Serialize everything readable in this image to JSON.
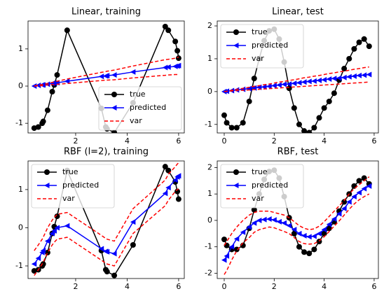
{
  "chart_data": [
    {
      "type": "line",
      "title": "Linear, training",
      "legend": "lower right",
      "x": [
        0.39,
        0.55,
        0.7,
        0.74,
        0.91,
        1.09,
        1.17,
        1.28,
        1.67,
        3.0,
        3.17,
        3.22,
        3.5,
        4.23,
        5.48,
        5.6,
        5.87,
        5.95,
        6.0
      ],
      "xlim": [
        0.15,
        6.22
      ],
      "xticks": [
        2,
        4,
        6
      ],
      "ylim": [
        -1.26,
        1.75
      ],
      "yticks": [
        -1,
        0,
        1
      ],
      "series": [
        {
          "name": "true",
          "color": "#000000",
          "values": [
            -1.13,
            -1.1,
            -1.0,
            -0.95,
            -0.65,
            -0.15,
            0.03,
            0.3,
            1.5,
            -0.6,
            -1.1,
            -1.15,
            -1.25,
            -0.45,
            1.6,
            1.5,
            1.2,
            0.95,
            0.75
          ]
        },
        {
          "name": "predicted",
          "color": "#0000ff",
          "values": [
            0,
            0.02,
            0.03,
            0.03,
            0.05,
            0.07,
            0.08,
            0.09,
            0.13,
            0.26,
            0.27,
            0.28,
            0.3,
            0.38,
            0.5,
            0.51,
            0.53,
            0.54,
            0.55
          ]
        },
        {
          "name": "var",
          "color": "#ff0000",
          "values": [
            0,
            0.03,
            0.04,
            0.05,
            0.07,
            0.1,
            0.11,
            0.13,
            0.19,
            0.37,
            0.39,
            0.4,
            0.43,
            0.54,
            0.71,
            0.72,
            0.75,
            0.77,
            0.78
          ],
          "values_lower": [
            0,
            0.01,
            0.01,
            0.02,
            0.03,
            0.04,
            0.04,
            0.05,
            0.07,
            0.15,
            0.16,
            0.16,
            0.17,
            0.22,
            0.29,
            0.3,
            0.31,
            0.31,
            0.32
          ]
        }
      ]
    },
    {
      "type": "line",
      "title": "Linear, test",
      "legend": "upper left",
      "x": [
        0,
        0.1,
        0.3,
        0.5,
        0.75,
        1.0,
        1.2,
        1.4,
        1.6,
        1.8,
        2.0,
        2.2,
        2.4,
        2.6,
        2.8,
        3.0,
        3.2,
        3.4,
        3.6,
        3.8,
        4.0,
        4.2,
        4.4,
        4.6,
        4.8,
        5.0,
        5.2,
        5.4,
        5.6,
        5.8
      ],
      "xlim": [
        -0.28,
        6.17
      ],
      "xticks": [
        0,
        2,
        4,
        6
      ],
      "ylim": [
        -1.26,
        2.15
      ],
      "yticks": [
        -1,
        0,
        1,
        2
      ],
      "series": [
        {
          "name": "true",
          "color": "#000000",
          "values": [
            -0.72,
            -0.95,
            -1.1,
            -1.1,
            -0.95,
            -0.3,
            0.4,
            1.0,
            1.55,
            1.85,
            1.9,
            1.6,
            0.9,
            0.1,
            -0.5,
            -1.0,
            -1.2,
            -1.25,
            -1.1,
            -0.8,
            -0.5,
            -0.3,
            -0.05,
            0.35,
            0.7,
            1.0,
            1.3,
            1.5,
            1.6,
            1.38
          ]
        },
        {
          "name": "predicted",
          "color": "#0000ff",
          "values": [
            0,
            0.01,
            0.03,
            0.05,
            0.07,
            0.09,
            0.11,
            0.13,
            0.14,
            0.16,
            0.18,
            0.2,
            0.22,
            0.23,
            0.25,
            0.27,
            0.29,
            0.31,
            0.32,
            0.34,
            0.36,
            0.38,
            0.4,
            0.41,
            0.43,
            0.45,
            0.47,
            0.49,
            0.5,
            0.52
          ]
        },
        {
          "name": "var",
          "color": "#ff0000",
          "values": [
            0,
            0.01,
            0.04,
            0.07,
            0.1,
            0.13,
            0.16,
            0.18,
            0.21,
            0.23,
            0.26,
            0.29,
            0.31,
            0.34,
            0.36,
            0.39,
            0.42,
            0.44,
            0.47,
            0.49,
            0.52,
            0.55,
            0.57,
            0.6,
            0.62,
            0.65,
            0.68,
            0.7,
            0.73,
            0.75
          ],
          "values_lower": [
            0,
            0.01,
            0.02,
            0.03,
            0.04,
            0.05,
            0.06,
            0.07,
            0.08,
            0.09,
            0.1,
            0.11,
            0.12,
            0.13,
            0.14,
            0.15,
            0.16,
            0.17,
            0.18,
            0.19,
            0.2,
            0.21,
            0.22,
            0.23,
            0.24,
            0.25,
            0.26,
            0.27,
            0.28,
            0.29
          ]
        }
      ]
    },
    {
      "type": "line",
      "title": "RBF (l=2), training",
      "legend": "upper left",
      "x": [
        0.39,
        0.55,
        0.7,
        0.74,
        0.91,
        1.09,
        1.17,
        1.28,
        1.67,
        3.0,
        3.17,
        3.22,
        3.5,
        4.23,
        5.48,
        5.6,
        5.87,
        5.95,
        6.0
      ],
      "xlim": [
        0.15,
        6.22
      ],
      "xticks": [
        2,
        4,
        6
      ],
      "ylim": [
        -1.33,
        1.75
      ],
      "yticks": [
        -1,
        0,
        1
      ],
      "series": [
        {
          "name": "true",
          "color": "#000000",
          "values": [
            -1.13,
            -1.1,
            -1.0,
            -0.95,
            -0.65,
            -0.15,
            0.03,
            0.3,
            1.5,
            -0.6,
            -1.1,
            -1.15,
            -1.25,
            -0.45,
            1.6,
            1.5,
            1.2,
            0.95,
            0.75
          ]
        },
        {
          "name": "predicted",
          "color": "#0000ff",
          "values": [
            -0.95,
            -0.8,
            -0.65,
            -0.6,
            -0.35,
            -0.15,
            -0.08,
            0.0,
            0.05,
            -0.55,
            -0.62,
            -0.63,
            -0.68,
            0.15,
            0.9,
            1.05,
            1.25,
            1.33,
            1.36
          ]
        },
        {
          "name": "var",
          "color": "#ff0000",
          "values": [
            -0.6,
            -0.45,
            -0.3,
            -0.25,
            0.0,
            0.2,
            0.27,
            0.35,
            0.4,
            -0.2,
            -0.28,
            -0.3,
            -0.35,
            0.5,
            1.25,
            1.4,
            1.6,
            1.67,
            1.7
          ],
          "values_lower": [
            -1.25,
            -1.1,
            -0.95,
            -0.9,
            -0.65,
            -0.45,
            -0.38,
            -0.3,
            -0.25,
            -0.85,
            -0.93,
            -0.95,
            -1.0,
            -0.15,
            0.58,
            0.72,
            0.95,
            1.0,
            1.02
          ]
        }
      ]
    },
    {
      "type": "line",
      "title": "RBF, test",
      "legend": "upper left",
      "x": [
        0,
        0.1,
        0.3,
        0.5,
        0.75,
        1.0,
        1.2,
        1.4,
        1.6,
        1.8,
        2.0,
        2.2,
        2.4,
        2.6,
        2.8,
        3.0,
        3.2,
        3.4,
        3.6,
        3.8,
        4.0,
        4.2,
        4.4,
        4.6,
        4.8,
        5.0,
        5.2,
        5.4,
        5.6,
        5.8
      ],
      "xlim": [
        -0.28,
        6.17
      ],
      "xticks": [
        0,
        2,
        4,
        6
      ],
      "ylim": [
        -2.2,
        2.25
      ],
      "yticks": [
        -2,
        -1,
        0,
        1,
        2
      ],
      "series": [
        {
          "name": "true",
          "color": "#000000",
          "values": [
            -0.72,
            -0.95,
            -1.1,
            -1.1,
            -0.95,
            -0.3,
            0.4,
            1.0,
            1.55,
            1.85,
            1.9,
            1.6,
            0.9,
            0.1,
            -0.5,
            -1.0,
            -1.2,
            -1.25,
            -1.1,
            -0.8,
            -0.5,
            -0.3,
            -0.05,
            0.35,
            0.7,
            1.0,
            1.3,
            1.5,
            1.6,
            1.38
          ]
        },
        {
          "name": "predicted",
          "color": "#0000ff",
          "values": [
            -1.5,
            -1.35,
            -1.0,
            -0.7,
            -0.45,
            -0.25,
            -0.1,
            0.0,
            0.03,
            0.05,
            0.02,
            -0.05,
            -0.1,
            -0.2,
            -0.35,
            -0.5,
            -0.58,
            -0.62,
            -0.6,
            -0.5,
            -0.35,
            -0.15,
            0.05,
            0.25,
            0.45,
            0.7,
            0.9,
            1.05,
            1.2,
            1.3
          ]
        },
        {
          "name": "var",
          "color": "#ff0000",
          "values": [
            -0.95,
            -0.8,
            -0.5,
            -0.25,
            0.0,
            0.2,
            0.3,
            0.35,
            0.35,
            0.35,
            0.3,
            0.25,
            0.2,
            0.1,
            -0.05,
            -0.2,
            -0.3,
            -0.35,
            -0.32,
            -0.22,
            -0.05,
            0.15,
            0.35,
            0.55,
            0.75,
            1.0,
            1.2,
            1.35,
            1.5,
            1.65
          ],
          "values_lower": [
            -2.05,
            -1.9,
            -1.5,
            -1.15,
            -0.85,
            -0.65,
            -0.45,
            -0.35,
            -0.3,
            -0.25,
            -0.28,
            -0.35,
            -0.42,
            -0.5,
            -0.65,
            -0.8,
            -0.88,
            -0.9,
            -0.88,
            -0.78,
            -0.62,
            -0.42,
            -0.22,
            -0.02,
            0.2,
            0.42,
            0.62,
            0.78,
            0.9,
            1.0
          ]
        }
      ]
    }
  ]
}
